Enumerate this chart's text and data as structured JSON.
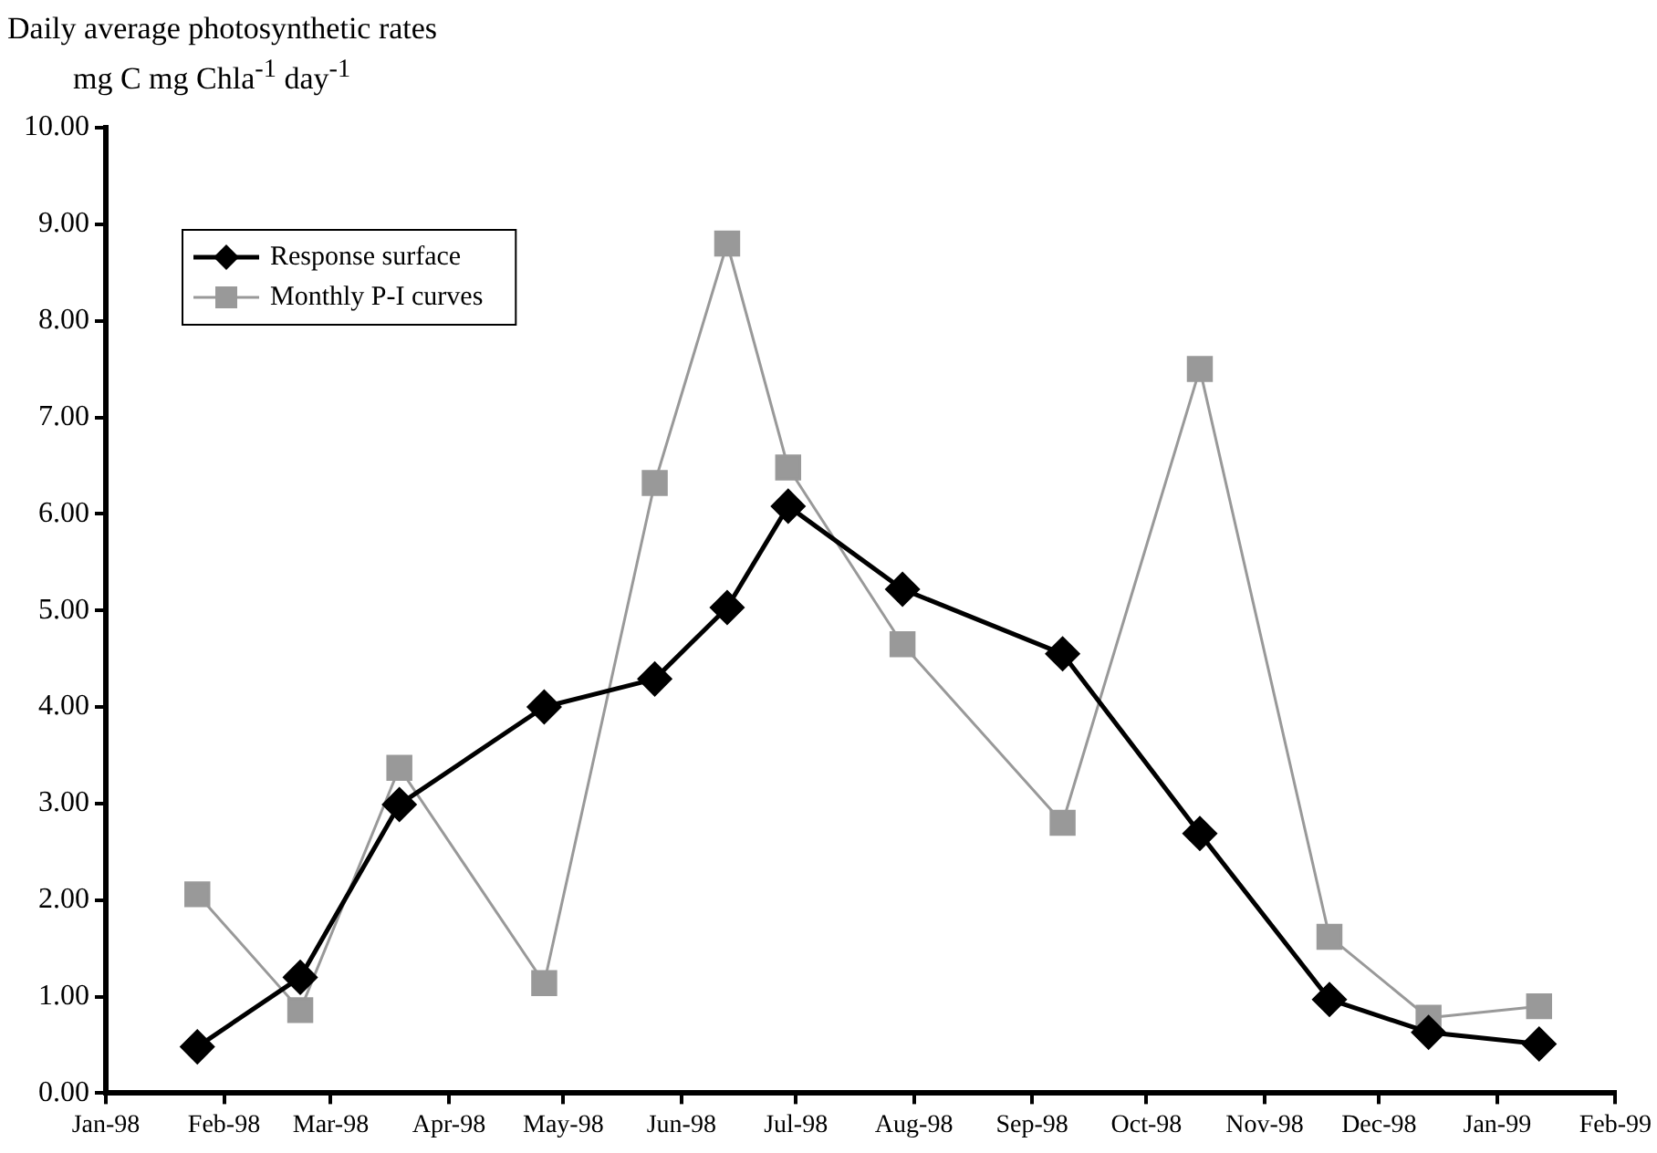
{
  "chart_data": {
    "type": "line",
    "title": "Daily average photosynthetic rates",
    "ylabel": "mg C mg Chla$^{-1}$ day$^{-1}$",
    "x": [
      "1998-01-25",
      "1998-02-21",
      "1998-03-19",
      "1998-04-26",
      "1998-05-25",
      "1998-06-13",
      "1998-06-29",
      "1998-07-29",
      "1998-09-09",
      "1998-10-15",
      "1998-11-18",
      "1998-12-14",
      "1999-01-12"
    ],
    "series": [
      {
        "name": "Response surface",
        "color": "#000000",
        "marker": "diamond",
        "values": [
          0.48,
          1.2,
          2.99,
          4.0,
          4.29,
          5.03,
          6.08,
          5.22,
          4.55,
          2.69,
          0.97,
          0.63,
          0.51
        ]
      },
      {
        "name": "Monthly P-I curves",
        "color": "#999999",
        "marker": "square",
        "values": [
          2.06,
          0.86,
          3.37,
          1.14,
          6.32,
          8.8,
          6.48,
          4.65,
          2.8,
          7.5,
          1.62,
          0.78,
          0.9
        ]
      }
    ],
    "xlim": [
      "1998-01-01",
      "1999-02-01"
    ],
    "xticks": [
      {
        "value": "1998-01-01",
        "label": "Jan-98"
      },
      {
        "value": "1998-02-01",
        "label": "Feb-98"
      },
      {
        "value": "1998-03-01",
        "label": "Mar-98"
      },
      {
        "value": "1998-04-01",
        "label": "Apr-98"
      },
      {
        "value": "1998-05-01",
        "label": "May-98"
      },
      {
        "value": "1998-06-01",
        "label": "Jun-98"
      },
      {
        "value": "1998-07-01",
        "label": "Jul-98"
      },
      {
        "value": "1998-08-01",
        "label": "Aug-98"
      },
      {
        "value": "1998-09-01",
        "label": "Sep-98"
      },
      {
        "value": "1998-10-01",
        "label": "Oct-98"
      },
      {
        "value": "1998-11-01",
        "label": "Nov-98"
      },
      {
        "value": "1998-12-01",
        "label": "Dec-98"
      },
      {
        "value": "1999-01-01",
        "label": "Jan-99"
      },
      {
        "value": "1999-02-01",
        "label": "Feb-99"
      }
    ],
    "ylim": [
      0,
      10
    ],
    "yticks": [
      {
        "value": 0,
        "label": "0.00"
      },
      {
        "value": 1,
        "label": "1.00"
      },
      {
        "value": 2,
        "label": "2.00"
      },
      {
        "value": 3,
        "label": "3.00"
      },
      {
        "value": 4,
        "label": "4.00"
      },
      {
        "value": 5,
        "label": "5.00"
      },
      {
        "value": 6,
        "label": "6.00"
      },
      {
        "value": 7,
        "label": "7.00"
      },
      {
        "value": 8,
        "label": "8.00"
      },
      {
        "value": 9,
        "label": "9.00"
      },
      {
        "value": 10,
        "label": "10.00"
      }
    ],
    "grid": false,
    "legend": "top left",
    "line_style": "solid"
  }
}
